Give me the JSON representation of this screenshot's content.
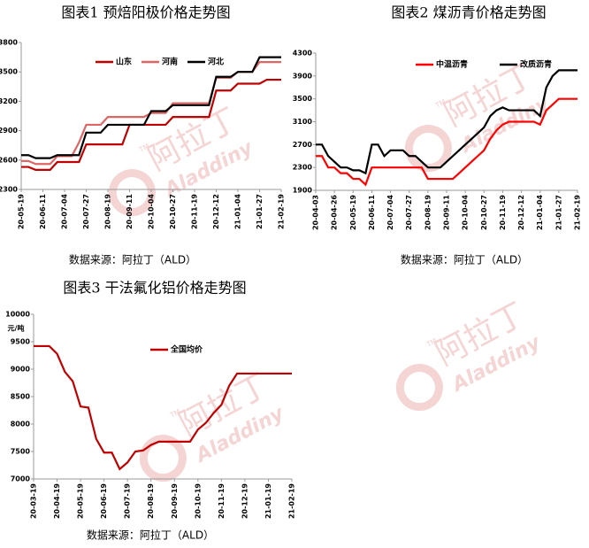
{
  "watermark": {
    "cn": "阿拉丁",
    "en": "Aladdiny",
    "tm": "TM"
  },
  "chart_data": [
    {
      "type": "line",
      "title": "图表1  预焙阳极价格走势图",
      "source": "数据来源：阿拉丁（ALD）",
      "categories": [
        "20-05-19",
        null,
        null,
        "20-06-11",
        null,
        null,
        "20-07-04",
        null,
        null,
        "20-07-27",
        null,
        null,
        "20-08-19",
        null,
        null,
        "20-09-11",
        null,
        null,
        "20-10-04",
        null,
        null,
        "20-10-27",
        null,
        null,
        "20-11-19",
        null,
        null,
        "20-12-12",
        null,
        null,
        "21-01-04",
        null,
        null,
        "21-01-27",
        null,
        null,
        "21-02-19"
      ],
      "series": [
        {
          "name": "山东",
          "color": "#c00000",
          "values": [
            2530,
            2530,
            2500,
            2500,
            2500,
            2580,
            2580,
            2580,
            2580,
            2760,
            2760,
            2760,
            2760,
            2760,
            2760,
            2960,
            2960,
            2960,
            2960,
            2960,
            2960,
            3040,
            3040,
            3040,
            3040,
            3040,
            3040,
            3310,
            3310,
            3310,
            3380,
            3380,
            3380,
            3380,
            3420,
            3420,
            3420
          ]
        },
        {
          "name": "河南",
          "color": "#e06666",
          "values": [
            2590,
            2590,
            2560,
            2560,
            2560,
            2640,
            2640,
            2640,
            2780,
            2960,
            2960,
            2960,
            3040,
            3040,
            3040,
            3040,
            3040,
            3040,
            3080,
            3080,
            3080,
            3180,
            3180,
            3180,
            3180,
            3180,
            3180,
            3440,
            3440,
            3440,
            3500,
            3500,
            3500,
            3600,
            3600,
            3600,
            3600
          ]
        },
        {
          "name": "河北",
          "color": "#000000",
          "values": [
            2650,
            2650,
            2620,
            2620,
            2620,
            2650,
            2650,
            2650,
            2650,
            2880,
            2880,
            2880,
            2960,
            2960,
            2960,
            2960,
            2960,
            2960,
            3100,
            3100,
            3100,
            3160,
            3160,
            3160,
            3160,
            3160,
            3160,
            3450,
            3450,
            3450,
            3500,
            3500,
            3500,
            3650,
            3650,
            3650,
            3650
          ]
        }
      ],
      "ylim": [
        2300,
        3800
      ],
      "yticks": [
        2300,
        2600,
        2900,
        3200,
        3500,
        3800
      ]
    },
    {
      "type": "line",
      "title": "图表2 煤沥青价格走势图",
      "source": "数据来源：阿拉丁（ALD）",
      "categories": [
        "20-04-03",
        null,
        null,
        "20-04-26",
        null,
        null,
        "20-05-19",
        null,
        null,
        "20-06-11",
        null,
        null,
        "20-07-04",
        null,
        null,
        "20-07-27",
        null,
        null,
        "20-08-19",
        null,
        null,
        "20-09-11",
        null,
        null,
        "20-10-04",
        null,
        null,
        "20-10-27",
        null,
        null,
        "20-11-19",
        null,
        null,
        "20-12-12",
        null,
        null,
        "21-01-04",
        null,
        null,
        "21-01-27",
        null,
        null,
        "21-02-19"
      ],
      "series": [
        {
          "name": "中温沥青",
          "color": "#ff0000",
          "values": [
            2500,
            2500,
            2300,
            2300,
            2200,
            2200,
            2100,
            2100,
            2000,
            2300,
            2300,
            2300,
            2300,
            2300,
            2300,
            2300,
            2300,
            2300,
            2100,
            2100,
            2100,
            2100,
            2100,
            2200,
            2300,
            2400,
            2500,
            2600,
            2800,
            2950,
            3050,
            3100,
            3100,
            3100,
            3100,
            3100,
            3050,
            3300,
            3400,
            3500,
            3500,
            3500,
            3500
          ]
        },
        {
          "name": "改质沥青",
          "color": "#000000",
          "values": [
            2700,
            2700,
            2500,
            2400,
            2300,
            2300,
            2250,
            2250,
            2200,
            2700,
            2700,
            2500,
            2600,
            2600,
            2600,
            2500,
            2500,
            2400,
            2300,
            2300,
            2300,
            2400,
            2500,
            2600,
            2700,
            2800,
            2900,
            3000,
            3200,
            3300,
            3350,
            3300,
            3300,
            3300,
            3300,
            3300,
            3200,
            3700,
            3900,
            4000,
            4000,
            4000,
            4000
          ]
        }
      ],
      "ylim": [
        1900,
        4300
      ],
      "yticks": [
        1900,
        2300,
        2700,
        3100,
        3500,
        3900,
        4300
      ]
    },
    {
      "type": "line",
      "title": "图表3   干法氟化铝价格走势图",
      "source": "数据来源：阿拉丁（ALD）",
      "y_unit": "元/吨",
      "categories": [
        "20-03-19",
        null,
        null,
        "20-04-19",
        null,
        null,
        "20-05-19",
        null,
        null,
        "20-06-19",
        null,
        null,
        "20-07-19",
        null,
        null,
        "20-08-19",
        null,
        null,
        "20-09-19",
        null,
        null,
        "20-10-19",
        null,
        null,
        "20-11-19",
        null,
        null,
        "20-12-19",
        null,
        null,
        "21-01-19",
        null,
        null,
        "21-02-19"
      ],
      "series": [
        {
          "name": "全国均价",
          "color": "#c00000",
          "values": [
            9420,
            9420,
            9420,
            9280,
            8950,
            8780,
            8320,
            8300,
            7730,
            7480,
            7480,
            7180,
            7300,
            7500,
            7520,
            7620,
            7680,
            7680,
            7680,
            7680,
            7680,
            7900,
            8020,
            8200,
            8350,
            8700,
            8920,
            8920,
            8920,
            8920,
            8920,
            8920,
            8920,
            8920
          ]
        }
      ],
      "ylim": [
        7000,
        10000
      ],
      "yticks": [
        7000,
        7500,
        8000,
        8500,
        9000,
        9500,
        10000
      ]
    }
  ]
}
